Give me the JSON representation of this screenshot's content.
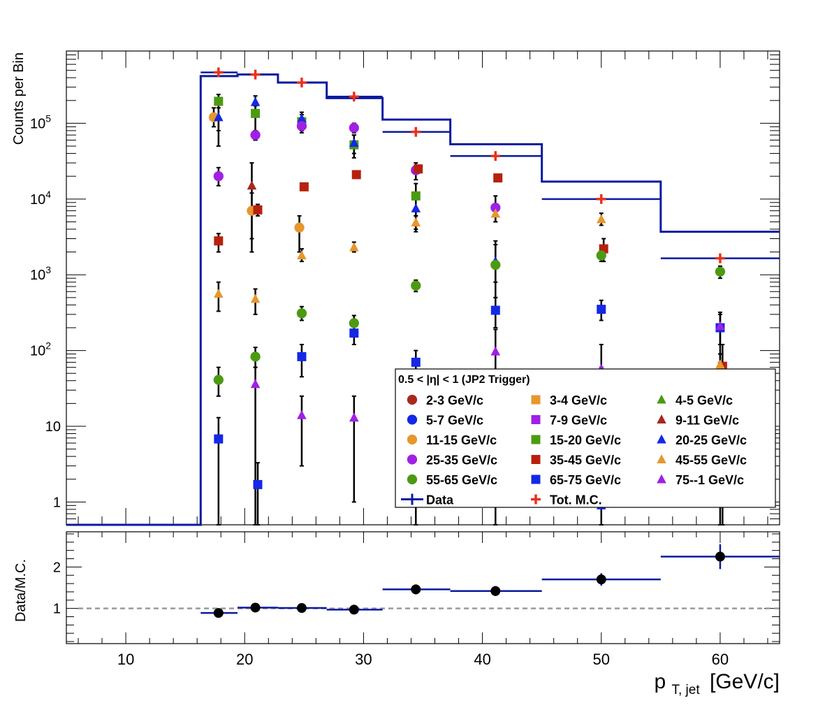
{
  "chart_data": [
    {
      "type": "scatter",
      "panel": "main",
      "ylabel": "Counts per Bin",
      "yscale": "log",
      "xlim": [
        5,
        65
      ],
      "ylim": [
        0.5,
        900000
      ],
      "y_ticks": [
        {
          "value": 1,
          "label": "1"
        },
        {
          "value": 10,
          "label": "10"
        },
        {
          "value": 100,
          "label": "10",
          "exp": "2"
        },
        {
          "value": 1000,
          "label": "10",
          "exp": "3"
        },
        {
          "value": 10000,
          "label": "10",
          "exp": "4"
        },
        {
          "value": 100000,
          "label": "10",
          "exp": "5"
        }
      ],
      "legend_title": "0.5 < |η| < 1 (JP2 Trigger)",
      "data_hist": {
        "name": "Data",
        "color": "#0a1aa0",
        "edges": [
          5,
          16.3,
          19.4,
          22.8,
          26.9,
          31.6,
          37.3,
          45.0,
          55.0,
          65.0
        ],
        "values": [
          0.5,
          420000,
          440000,
          345000,
          215000,
          112000,
          53000,
          17000,
          3700
        ]
      },
      "totmc": {
        "name": "Tot. M.C.",
        "color": "#e8321e",
        "bins": [
          {
            "x": 17.8,
            "xlo": 16.3,
            "xhi": 19.4,
            "y": 470000
          },
          {
            "x": 20.9,
            "xlo": 19.4,
            "xhi": 22.8,
            "y": 440000
          },
          {
            "x": 24.8,
            "xlo": 22.8,
            "xhi": 26.9,
            "y": 345000
          },
          {
            "x": 29.2,
            "xlo": 26.9,
            "xhi": 31.6,
            "y": 225000
          },
          {
            "x": 34.4,
            "xlo": 31.6,
            "xhi": 37.3,
            "y": 77000
          },
          {
            "x": 41.1,
            "xlo": 37.3,
            "xhi": 45.0,
            "y": 37000
          },
          {
            "x": 50.0,
            "xlo": 45.0,
            "xhi": 55.0,
            "y": 10000
          },
          {
            "x": 60.0,
            "xlo": 55.0,
            "xhi": 65.0,
            "y": 1650
          }
        ]
      },
      "series": [
        {
          "name": "2-3 GeV/c",
          "color": "#a8281e",
          "marker": "circle",
          "points": []
        },
        {
          "name": "3-4 GeV/c",
          "color": "#e8962e",
          "marker": "square",
          "points": []
        },
        {
          "name": "4-5 GeV/c",
          "color": "#4c9a12",
          "marker": "triangle",
          "points": []
        },
        {
          "name": "5-7 GeV/c",
          "color": "#1428e6",
          "marker": "circle",
          "points": []
        },
        {
          "name": "7-9 GeV/c",
          "color": "#a020e6",
          "marker": "square",
          "points": []
        },
        {
          "name": "9-11 GeV/c",
          "color": "#a8281e",
          "marker": "triangle",
          "points": [
            {
              "x": 20.6,
              "y": 15000,
              "ylo": 2000,
              "yhi": 30000
            }
          ]
        },
        {
          "name": "11-15 GeV/c",
          "color": "#e8962e",
          "marker": "circle",
          "points": [
            {
              "x": 17.4,
              "y": 120000,
              "ylo": 90000,
              "yhi": 160000
            },
            {
              "x": 20.6,
              "y": 7000,
              "ylo": 3000,
              "yhi": 12000
            },
            {
              "x": 24.6,
              "y": 4200,
              "ylo": 2000,
              "yhi": 6000
            }
          ]
        },
        {
          "name": "15-20 GeV/c",
          "color": "#4c9a12",
          "marker": "square",
          "points": [
            {
              "x": 17.8,
              "y": 195000,
              "ylo": 50000,
              "yhi": 240000
            },
            {
              "x": 20.9,
              "y": 135000,
              "ylo": 60000,
              "yhi": 170000
            },
            {
              "x": 24.8,
              "y": 105000,
              "ylo": 75000,
              "yhi": 130000
            },
            {
              "x": 29.2,
              "y": 52000,
              "ylo": 35000,
              "yhi": 70000
            },
            {
              "x": 34.4,
              "y": 11000,
              "ylo": 6000,
              "yhi": 16000
            }
          ]
        },
        {
          "name": "20-25 GeV/c",
          "color": "#1428e6",
          "marker": "triangle",
          "points": [
            {
              "x": 17.8,
              "y": 120000,
              "ylo": 80000,
              "yhi": 160000
            },
            {
              "x": 20.9,
              "y": 190000,
              "ylo": 150000,
              "yhi": 230000
            },
            {
              "x": 24.8,
              "y": 115000,
              "ylo": 90000,
              "yhi": 140000
            },
            {
              "x": 29.2,
              "y": 55000,
              "ylo": 40000,
              "yhi": 70000
            },
            {
              "x": 34.4,
              "y": 7500,
              "ylo": 4000,
              "yhi": 12000
            },
            {
              "x": 41.1,
              "y": 1500,
              "ylo": 500,
              "yhi": 2500
            },
            {
              "x": 50.0,
              "y": 0.9,
              "ylo": 0.5,
              "yhi": 1.2
            }
          ]
        },
        {
          "name": "25-35 GeV/c",
          "color": "#a020e6",
          "marker": "circle",
          "points": [
            {
              "x": 17.8,
              "y": 20000,
              "ylo": 15000,
              "yhi": 26000
            },
            {
              "x": 20.9,
              "y": 70000,
              "ylo": 60000,
              "yhi": 80000
            },
            {
              "x": 24.8,
              "y": 92000,
              "ylo": 80000,
              "yhi": 105000
            },
            {
              "x": 29.2,
              "y": 87000,
              "ylo": 75000,
              "yhi": 100000
            },
            {
              "x": 34.4,
              "y": 24000,
              "ylo": 18000,
              "yhi": 30000
            },
            {
              "x": 41.1,
              "y": 7700,
              "ylo": 5000,
              "yhi": 11000
            },
            {
              "x": 50.0,
              "y": 38,
              "ylo": 20,
              "yhi": 60
            }
          ]
        },
        {
          "name": "35-45 GeV/c",
          "color": "#b8200e",
          "marker": "square",
          "points": [
            {
              "x": 17.8,
              "y": 2800,
              "ylo": 2000,
              "yhi": 3500
            },
            {
              "x": 21.1,
              "y": 7200,
              "ylo": 6000,
              "yhi": 8500
            },
            {
              "x": 25.0,
              "y": 14500,
              "ylo": 13000,
              "yhi": 16000
            },
            {
              "x": 29.4,
              "y": 21000,
              "ylo": 19000,
              "yhi": 23000
            },
            {
              "x": 34.6,
              "y": 25000,
              "ylo": 22000,
              "yhi": 28000
            },
            {
              "x": 41.3,
              "y": 19000,
              "ylo": 17000,
              "yhi": 21000
            },
            {
              "x": 50.2,
              "y": 2200,
              "ylo": 1500,
              "yhi": 3000
            },
            {
              "x": 60.2,
              "y": 62,
              "ylo": 0.5,
              "yhi": 120
            }
          ]
        },
        {
          "name": "45-55 GeV/c",
          "color": "#e8962e",
          "marker": "triangle",
          "points": [
            {
              "x": 17.8,
              "y": 560,
              "ylo": 330,
              "yhi": 800
            },
            {
              "x": 20.9,
              "y": 480,
              "ylo": 300,
              "yhi": 650
            },
            {
              "x": 24.8,
              "y": 1800,
              "ylo": 1500,
              "yhi": 2200
            },
            {
              "x": 29.2,
              "y": 2300,
              "ylo": 2000,
              "yhi": 2700
            },
            {
              "x": 34.4,
              "y": 4900,
              "ylo": 3700,
              "yhi": 6000
            },
            {
              "x": 41.1,
              "y": 6400,
              "ylo": 5000,
              "yhi": 8000
            },
            {
              "x": 50.0,
              "y": 5400,
              "ylo": 4500,
              "yhi": 6500
            },
            {
              "x": 60.0,
              "y": 65,
              "ylo": 40,
              "yhi": 90
            }
          ]
        },
        {
          "name": "55-65 GeV/c",
          "color": "#4c9a12",
          "marker": "circle",
          "points": [
            {
              "x": 17.8,
              "y": 41,
              "ylo": 25,
              "yhi": 60
            },
            {
              "x": 20.9,
              "y": 83,
              "ylo": 60,
              "yhi": 110
            },
            {
              "x": 24.8,
              "y": 310,
              "ylo": 250,
              "yhi": 380
            },
            {
              "x": 29.2,
              "y": 230,
              "ylo": 180,
              "yhi": 290
            },
            {
              "x": 34.4,
              "y": 720,
              "ylo": 600,
              "yhi": 850
            },
            {
              "x": 41.1,
              "y": 1350,
              "ylo": 800,
              "yhi": 2800
            },
            {
              "x": 50.0,
              "y": 1800,
              "ylo": 1500,
              "yhi": 2200
            },
            {
              "x": 60.0,
              "y": 1100,
              "ylo": 900,
              "yhi": 1300
            }
          ]
        },
        {
          "name": "65-75 GeV/c",
          "color": "#1428e6",
          "marker": "square",
          "points": [
            {
              "x": 17.8,
              "y": 6.8,
              "ylo": 0.5,
              "yhi": 13
            },
            {
              "x": 21.1,
              "y": 1.7,
              "ylo": 0.5,
              "yhi": 3.3
            },
            {
              "x": 24.8,
              "y": 83,
              "ylo": 45,
              "yhi": 120
            },
            {
              "x": 29.2,
              "y": 170,
              "ylo": 120,
              "yhi": 230
            },
            {
              "x": 34.4,
              "y": 70,
              "ylo": 40,
              "yhi": 100
            },
            {
              "x": 41.1,
              "y": 340,
              "ylo": 200,
              "yhi": 500
            },
            {
              "x": 50.0,
              "y": 350,
              "ylo": 250,
              "yhi": 460
            },
            {
              "x": 60.0,
              "y": 200,
              "ylo": 120,
              "yhi": 320
            }
          ]
        },
        {
          "name": "75--1 GeV/c",
          "color": "#a020e6",
          "marker": "triangle",
          "points": [
            {
              "x": 20.9,
              "y": 36,
              "ylo": 0.5,
              "yhi": 60
            },
            {
              "x": 24.8,
              "y": 14,
              "ylo": 3,
              "yhi": 25
            },
            {
              "x": 29.2,
              "y": 13,
              "ylo": 1,
              "yhi": 25
            },
            {
              "x": 34.4,
              "y": 14,
              "ylo": 0.5,
              "yhi": 28
            },
            {
              "x": 41.1,
              "y": 97,
              "ylo": 0.5,
              "yhi": 190
            },
            {
              "x": 50.0,
              "y": 57,
              "ylo": 0.5,
              "yhi": 120
            },
            {
              "x": 60.0,
              "y": 210,
              "ylo": 0.5,
              "yhi": 300
            }
          ]
        }
      ]
    },
    {
      "type": "scatter",
      "panel": "ratio",
      "ylabel": "Data/M.C.",
      "xlabel": "p",
      "xlabel_sub": "T, jet",
      "xlabel_unit": "[GeV/c]",
      "xlim": [
        5,
        65
      ],
      "ylim": [
        0.15,
        2.85
      ],
      "x_ticks": [
        10,
        20,
        30,
        40,
        50,
        60
      ],
      "y_ticks": [
        1,
        2
      ],
      "reference_line": 1,
      "points": [
        {
          "x": 17.8,
          "xlo": 16.3,
          "xhi": 19.4,
          "y": 0.89,
          "yerr": 0.08
        },
        {
          "x": 20.9,
          "xlo": 19.4,
          "xhi": 22.8,
          "y": 1.02,
          "yerr": 0.05
        },
        {
          "x": 24.8,
          "xlo": 22.8,
          "xhi": 26.9,
          "y": 1.01,
          "yerr": 0.05
        },
        {
          "x": 29.2,
          "xlo": 26.9,
          "xhi": 31.6,
          "y": 0.97,
          "yerr": 0.05
        },
        {
          "x": 34.4,
          "xlo": 31.6,
          "xhi": 37.3,
          "y": 1.46,
          "yerr": 0.12
        },
        {
          "x": 41.1,
          "xlo": 37.3,
          "xhi": 45.0,
          "y": 1.42,
          "yerr": 0.12
        },
        {
          "x": 50.0,
          "xlo": 45.0,
          "xhi": 55.0,
          "y": 1.7,
          "yerr": 0.15
        },
        {
          "x": 60.0,
          "xlo": 55.0,
          "xhi": 65.0,
          "y": 2.25,
          "yerr": 0.3
        }
      ]
    }
  ]
}
